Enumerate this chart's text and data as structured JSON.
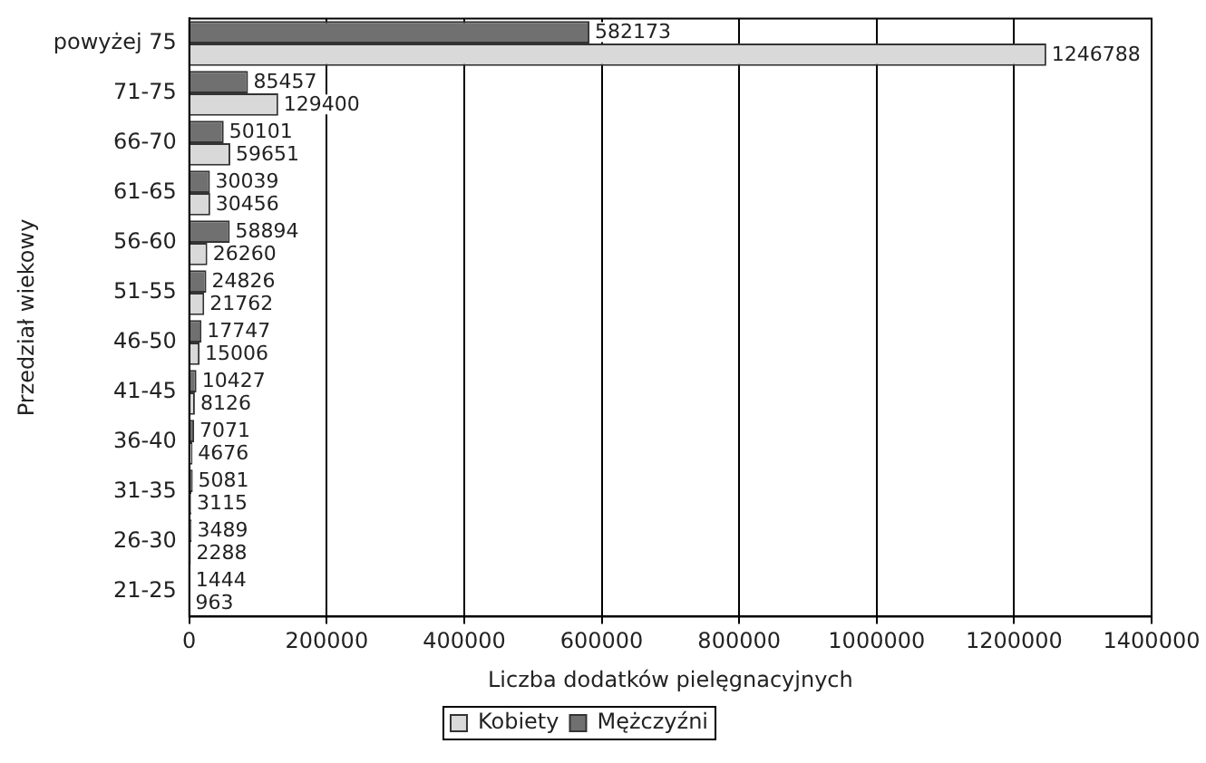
{
  "chart_data": {
    "type": "bar",
    "orientation": "horizontal",
    "xlabel": "Liczba dodatków pielęgnacyjnych",
    "ylabel": "Przedział wiekowy",
    "categories": [
      "powyżej 75",
      "71-75",
      "66-70",
      "61-65",
      "56-60",
      "51-55",
      "46-50",
      "41-45",
      "36-40",
      "31-35",
      "26-30",
      "21-25"
    ],
    "series": [
      {
        "name": "Mężczyźni",
        "color": "#707070",
        "values": [
          582173,
          85457,
          50101,
          30039,
          58894,
          24826,
          17747,
          10427,
          7071,
          5081,
          3489,
          1444
        ]
      },
      {
        "name": "Kobiety",
        "color": "#d9d9d9",
        "values": [
          1246788,
          129400,
          59651,
          30456,
          26260,
          21762,
          15006,
          8126,
          4676,
          3115,
          2288,
          963
        ]
      }
    ],
    "xlim": [
      0,
      1400000
    ],
    "xticks": [
      0,
      200000,
      400000,
      600000,
      800000,
      1000000,
      1200000,
      1400000
    ],
    "grid": "x",
    "legend": "bottom",
    "data_labels": true
  }
}
